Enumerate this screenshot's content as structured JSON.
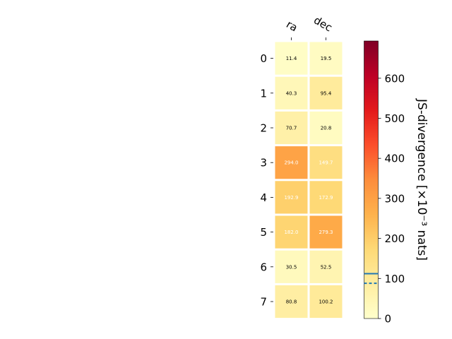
{
  "chart_data": {
    "type": "heatmap",
    "columns": [
      "ra",
      "dec"
    ],
    "rows": [
      "0",
      "1",
      "2",
      "3",
      "4",
      "5",
      "6",
      "7"
    ],
    "values": [
      [
        11.4,
        19.5
      ],
      [
        40.3,
        95.4
      ],
      [
        70.7,
        20.8
      ],
      [
        294.0,
        149.7
      ],
      [
        192.9,
        172.9
      ],
      [
        182.0,
        279.3
      ],
      [
        30.5,
        52.5
      ],
      [
        80.8,
        100.2
      ]
    ],
    "value_labels": [
      [
        "11.4",
        "19.5"
      ],
      [
        "40.3",
        "95.4"
      ],
      [
        "70.7",
        "20.8"
      ],
      [
        "294.0",
        "149.7"
      ],
      [
        "192.9",
        "172.9"
      ],
      [
        "182.0",
        "279.3"
      ],
      [
        "30.5",
        "52.5"
      ],
      [
        "80.8",
        "100.2"
      ]
    ],
    "colorbar": {
      "label": "JS-divergence [×10⁻³ nats]",
      "range": [
        0,
        693.1
      ],
      "ticks": [
        0,
        100,
        200,
        300,
        400,
        500,
        600
      ],
      "tick_labels": [
        "0",
        "100",
        "200",
        "300",
        "400",
        "500",
        "600"
      ],
      "colormap": "YlOrRd",
      "solid_line_value": 112,
      "dashed_line_value": 88,
      "line_color": "#1f77b4"
    },
    "white_text_threshold": 140,
    "grid_color": "#ffffff"
  }
}
